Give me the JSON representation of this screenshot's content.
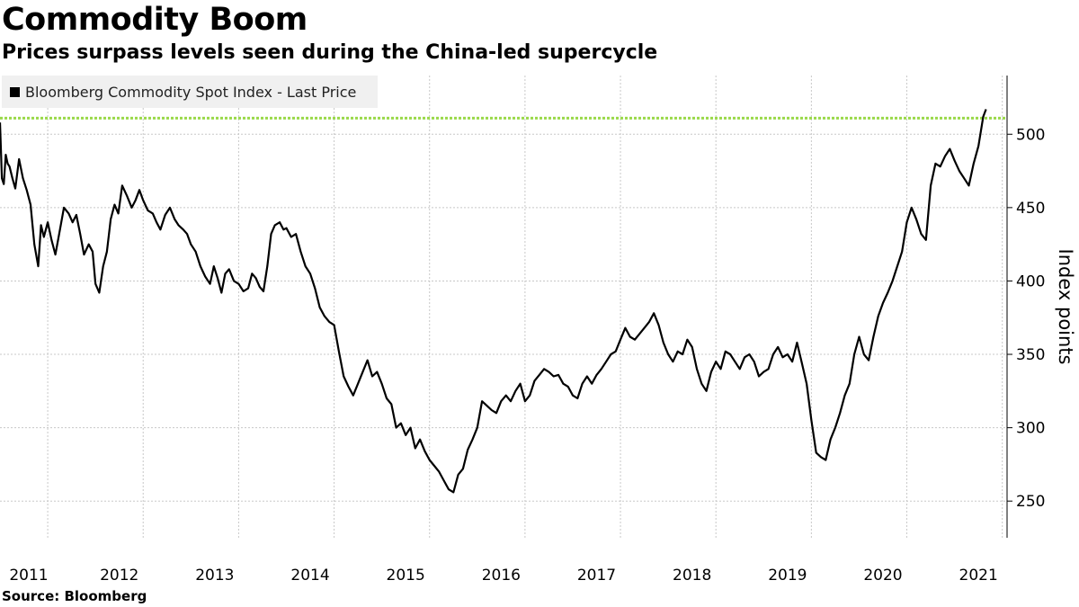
{
  "chart_data": {
    "type": "line",
    "title": "Commodity Boom",
    "subtitle": "Prices surpass levels seen during the China-led supercycle",
    "ylabel": "Index points",
    "xlabel": "",
    "source": "Source: Bloomberg",
    "legend_position": "top-left",
    "grid": true,
    "ylim": [
      225,
      540
    ],
    "xlim": [
      2011.0,
      2021.55
    ],
    "x_ticks": [
      "2011",
      "2012",
      "2013",
      "2014",
      "2015",
      "2016",
      "2017",
      "2018",
      "2019",
      "2020",
      "2021"
    ],
    "y_ticks": [
      250,
      300,
      350,
      400,
      450,
      500
    ],
    "reference_line": {
      "value": 511,
      "color": "#9ad94a"
    },
    "series": [
      {
        "name": "Bloomberg Commodity Spot Index - Last Price",
        "color": "#000000",
        "x": [
          2011.0,
          2011.02,
          2011.04,
          2011.06,
          2011.08,
          2011.1,
          2011.13,
          2011.16,
          2011.2,
          2011.24,
          2011.28,
          2011.32,
          2011.36,
          2011.4,
          2011.43,
          2011.46,
          2011.5,
          2011.54,
          2011.58,
          2011.62,
          2011.67,
          2011.72,
          2011.76,
          2011.8,
          2011.84,
          2011.88,
          2011.93,
          2011.97,
          2012.0,
          2012.04,
          2012.08,
          2012.12,
          2012.16,
          2012.2,
          2012.24,
          2012.28,
          2012.33,
          2012.38,
          2012.42,
          2012.46,
          2012.5,
          2012.55,
          2012.6,
          2012.64,
          2012.68,
          2012.73,
          2012.78,
          2012.83,
          2012.87,
          2012.92,
          2012.96,
          2013.0,
          2013.05,
          2013.1,
          2013.15,
          2013.2,
          2013.24,
          2013.28,
          2013.32,
          2013.36,
          2013.4,
          2013.45,
          2013.5,
          2013.55,
          2013.6,
          2013.64,
          2013.68,
          2013.72,
          2013.76,
          2013.8,
          2013.84,
          2013.88,
          2013.93,
          2013.97,
          2014.0,
          2014.05,
          2014.1,
          2014.15,
          2014.2,
          2014.25,
          2014.3,
          2014.35,
          2014.4,
          2014.45,
          2014.5,
          2014.55,
          2014.6,
          2014.65,
          2014.7,
          2014.75,
          2014.8,
          2014.85,
          2014.9,
          2014.95,
          2015.0,
          2015.05,
          2015.1,
          2015.15,
          2015.2,
          2015.25,
          2015.3,
          2015.35,
          2015.4,
          2015.45,
          2015.5,
          2015.55,
          2015.6,
          2015.65,
          2015.7,
          2015.75,
          2015.8,
          2015.85,
          2015.9,
          2015.95,
          2016.0,
          2016.05,
          2016.1,
          2016.15,
          2016.2,
          2016.25,
          2016.3,
          2016.35,
          2016.4,
          2016.45,
          2016.5,
          2016.55,
          2016.6,
          2016.65,
          2016.7,
          2016.75,
          2016.8,
          2016.85,
          2016.9,
          2016.95,
          2017.0,
          2017.05,
          2017.1,
          2017.15,
          2017.2,
          2017.25,
          2017.3,
          2017.35,
          2017.4,
          2017.45,
          2017.5,
          2017.55,
          2017.6,
          2017.65,
          2017.7,
          2017.75,
          2017.8,
          2017.85,
          2017.9,
          2017.95,
          2018.0,
          2018.05,
          2018.1,
          2018.15,
          2018.2,
          2018.25,
          2018.3,
          2018.35,
          2018.4,
          2018.45,
          2018.5,
          2018.55,
          2018.6,
          2018.65,
          2018.7,
          2018.75,
          2018.8,
          2018.85,
          2018.9,
          2018.95,
          2019.0,
          2019.05,
          2019.1,
          2019.15,
          2019.2,
          2019.25,
          2019.3,
          2019.35,
          2019.4,
          2019.45,
          2019.5,
          2019.55,
          2019.6,
          2019.65,
          2019.7,
          2019.75,
          2019.8,
          2019.85,
          2019.9,
          2019.95,
          2020.0,
          2020.05,
          2020.1,
          2020.15,
          2020.2,
          2020.25,
          2020.3,
          2020.35,
          2020.4,
          2020.45,
          2020.5,
          2020.55,
          2020.6,
          2020.65,
          2020.7,
          2020.75,
          2020.8,
          2020.85,
          2020.9,
          2020.95,
          2021.0,
          2021.05,
          2021.1,
          2021.15,
          2021.2,
          2021.25,
          2021.3,
          2021.33
        ],
        "values": [
          508,
          470,
          466,
          486,
          480,
          478,
          470,
          463,
          483,
          470,
          462,
          452,
          425,
          410,
          438,
          430,
          440,
          428,
          418,
          432,
          450,
          446,
          440,
          445,
          432,
          418,
          425,
          420,
          398,
          392,
          410,
          420,
          442,
          452,
          446,
          465,
          458,
          450,
          455,
          462,
          455,
          448,
          446,
          440,
          435,
          445,
          450,
          442,
          438,
          435,
          432,
          425,
          420,
          410,
          403,
          398,
          410,
          402,
          392,
          405,
          408,
          400,
          398,
          393,
          395,
          405,
          402,
          396,
          393,
          410,
          432,
          438,
          440,
          435,
          436,
          430,
          432,
          420,
          410,
          405,
          395,
          382,
          376,
          372,
          370,
          352,
          335,
          328,
          322,
          330,
          338,
          346,
          335,
          338,
          330,
          320,
          316,
          300,
          303,
          295,
          300,
          286,
          292,
          284,
          278,
          274,
          270,
          264,
          258,
          256,
          268,
          272,
          285,
          292,
          300,
          318,
          315,
          312,
          310,
          318,
          322,
          318,
          325,
          330,
          318,
          322,
          332,
          336,
          340,
          338,
          335,
          336,
          330,
          328,
          322,
          320,
          330,
          335,
          330,
          336,
          340,
          345,
          350,
          352,
          360,
          368,
          362,
          360,
          364,
          368,
          372,
          378,
          370,
          358,
          350,
          345,
          352,
          350,
          360,
          355,
          340,
          330,
          325,
          338,
          345,
          340,
          352,
          350,
          345,
          340,
          348,
          350,
          345,
          335,
          338,
          340,
          350,
          355,
          348,
          350,
          345,
          358,
          344,
          330,
          305,
          283,
          280,
          278,
          292,
          300,
          310,
          322,
          330,
          350,
          362,
          350,
          346,
          362,
          376,
          385,
          392,
          400,
          410,
          420,
          440,
          450,
          442,
          432,
          428,
          465,
          480,
          478,
          485,
          490,
          482,
          475,
          470,
          465,
          480,
          492,
          512,
          517
        ]
      }
    ]
  },
  "legend": {
    "label": "Bloomberg Commodity Spot Index - Last Price"
  }
}
